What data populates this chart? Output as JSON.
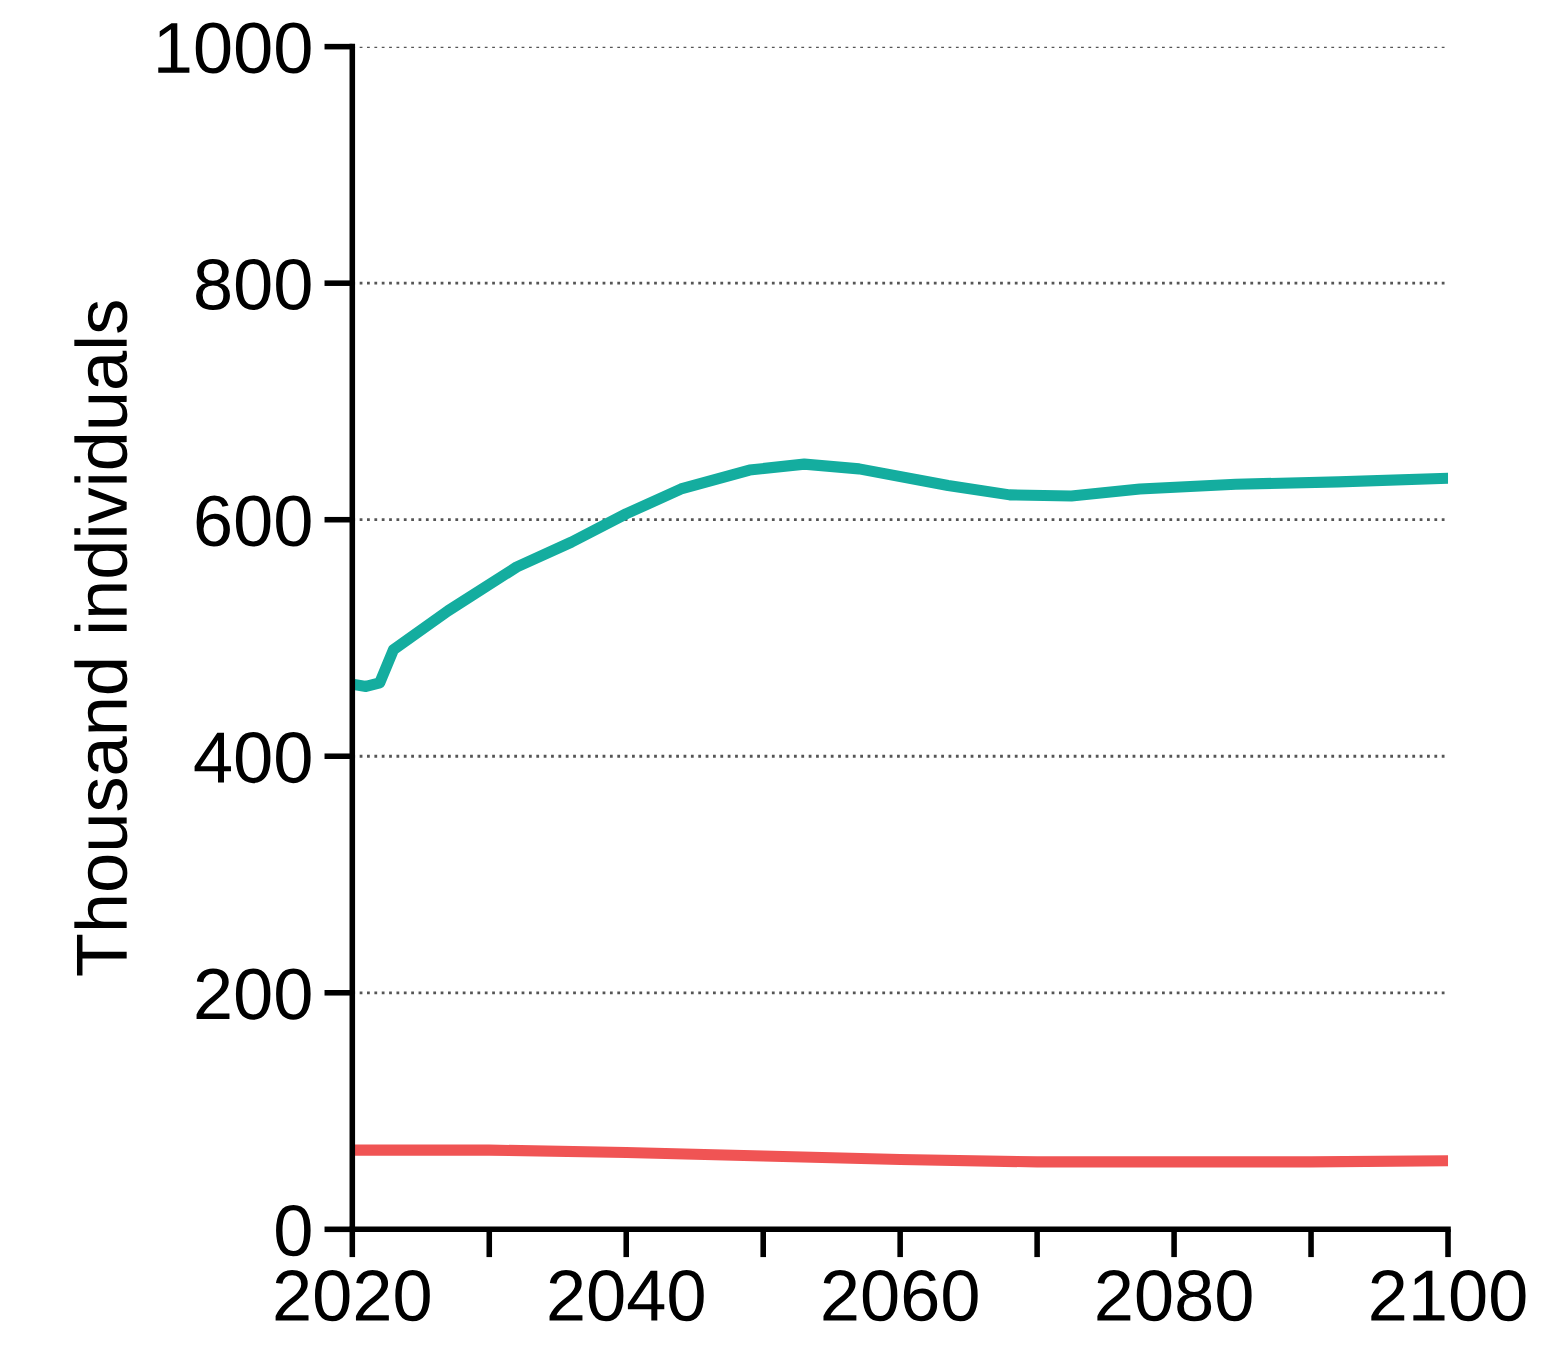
{
  "chart_data": {
    "type": "line",
    "ylabel": "Thousand individuals",
    "series": [
      {
        "color": "#14ad9f",
        "x": [
          2020,
          2021,
          2022,
          2023,
          2027,
          2032,
          2036,
          2040,
          2044,
          2049,
          2053,
          2057,
          2063.5,
          2068,
          2072.5,
          2077.5,
          2084.5,
          2092,
          2100
        ],
        "values": [
          461,
          459,
          462,
          490,
          523,
          560,
          581,
          605,
          626,
          642,
          647,
          643,
          629,
          621,
          620,
          626,
          630,
          632,
          635
        ]
      },
      {
        "color": "#f05454",
        "x": [
          2020,
          2030,
          2040,
          2050,
          2060,
          2070,
          2080,
          2090,
          2100
        ],
        "values": [
          67,
          67,
          65,
          62,
          59,
          57,
          57,
          57,
          58
        ]
      }
    ],
    "xlim": [
      2020,
      2100
    ],
    "xticks": [
      2020,
      {
        "value": 2030,
        "label": null
      },
      2040,
      {
        "value": 2050,
        "label": null
      },
      2060,
      {
        "value": 2070,
        "label": null
      },
      2080,
      {
        "value": 2090,
        "label": null
      },
      2100
    ],
    "ylim": [
      0,
      1000
    ],
    "yticks": [
      0,
      200,
      400,
      600,
      800,
      1000
    ],
    "grid": "y",
    "legend": false
  }
}
